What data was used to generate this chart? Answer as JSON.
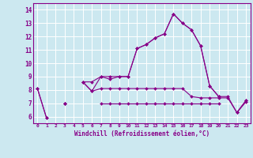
{
  "xlabel": "Windchill (Refroidissement éolien,°C)",
  "background_color": "#cce8f0",
  "grid_color": "#aaccdd",
  "line_color": "#880088",
  "x_hours": [
    0,
    1,
    2,
    3,
    4,
    5,
    6,
    7,
    8,
    9,
    10,
    11,
    12,
    13,
    14,
    15,
    16,
    17,
    18,
    19,
    20,
    21,
    22,
    23
  ],
  "series1": [
    8.1,
    5.9,
    null,
    7.0,
    null,
    8.6,
    8.6,
    9.0,
    8.8,
    9.0,
    9.0,
    11.1,
    11.4,
    11.9,
    12.2,
    13.7,
    13.0,
    12.5,
    11.3,
    8.3,
    7.5,
    7.5,
    6.3,
    7.2
  ],
  "series2": [
    8.1,
    5.9,
    null,
    7.0,
    null,
    8.6,
    7.9,
    9.0,
    9.0,
    9.0,
    9.0,
    11.1,
    11.4,
    11.9,
    12.2,
    13.7,
    13.0,
    12.5,
    11.3,
    8.3,
    7.5,
    null,
    6.3,
    7.2
  ],
  "series3": [
    null,
    null,
    null,
    7.0,
    null,
    8.6,
    7.9,
    8.1,
    8.1,
    8.1,
    8.1,
    8.1,
    8.1,
    8.1,
    8.1,
    8.1,
    8.1,
    7.5,
    7.4,
    7.4,
    7.4,
    7.4,
    6.3,
    7.1
  ],
  "series4": [
    null,
    null,
    null,
    7.0,
    null,
    null,
    null,
    7.0,
    7.0,
    7.0,
    7.0,
    7.0,
    7.0,
    7.0,
    7.0,
    7.0,
    7.0,
    7.0,
    7.0,
    7.0,
    7.0,
    null,
    null,
    null
  ],
  "ylim": [
    5.5,
    14.5
  ],
  "xlim": [
    -0.5,
    23.5
  ],
  "yticks": [
    6,
    7,
    8,
    9,
    10,
    11,
    12,
    13,
    14
  ],
  "xticks": [
    0,
    1,
    2,
    3,
    4,
    5,
    6,
    7,
    8,
    9,
    10,
    11,
    12,
    13,
    14,
    15,
    16,
    17,
    18,
    19,
    20,
    21,
    22,
    23
  ]
}
